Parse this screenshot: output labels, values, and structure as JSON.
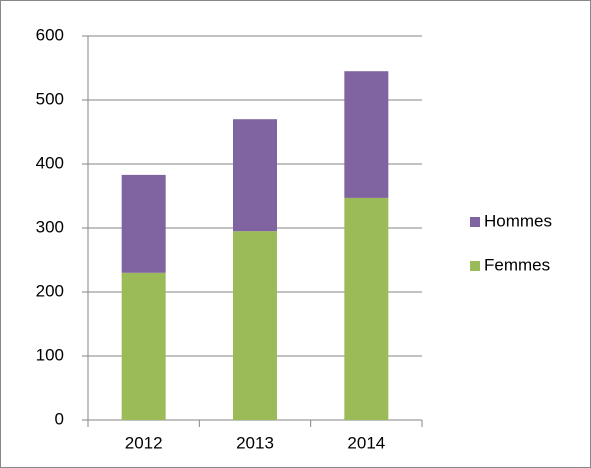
{
  "chart_data": {
    "type": "stacked_bar",
    "categories": [
      "2012",
      "2013",
      "2014"
    ],
    "series": [
      {
        "name": "Femmes",
        "color": "#9bbb59",
        "values": [
          230,
          295,
          347
        ]
      },
      {
        "name": "Hommes",
        "color": "#8064a2",
        "values": [
          153,
          175,
          198
        ]
      }
    ],
    "ylim": [
      0,
      600
    ],
    "yticks": [
      0,
      100,
      200,
      300,
      400,
      500,
      600
    ],
    "grid": true,
    "legend": "right"
  }
}
